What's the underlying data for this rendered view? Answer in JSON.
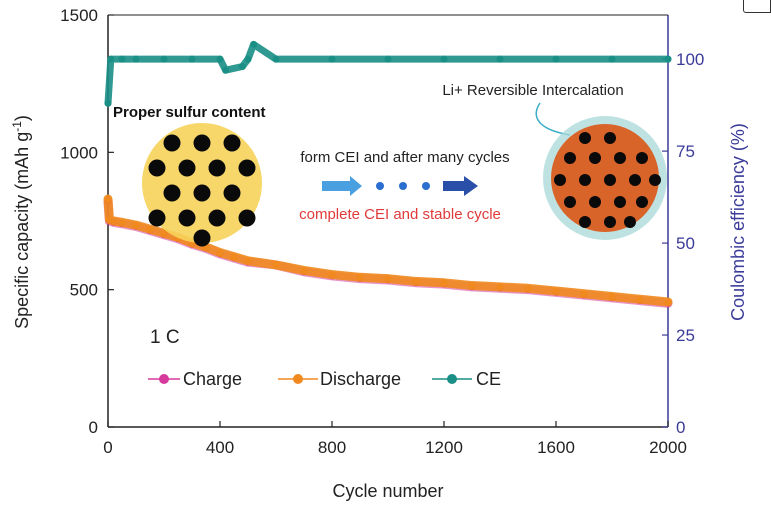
{
  "chart_data": {
    "type": "scatter",
    "x_label": "Cycle number",
    "y_label_left": "Specific capacity (mAh g",
    "y_label_left_sup": "-1",
    "y_label_left_close": ")",
    "y_label_right": "Coulombic efficiency (%)",
    "xlim": [
      0,
      2000
    ],
    "ylim_left": [
      0,
      1500
    ],
    "ylim_right": [
      0,
      112
    ],
    "x_ticks": [
      "0",
      "400",
      "800",
      "1200",
      "1600",
      "2000"
    ],
    "x_tick_values": [
      0,
      400,
      800,
      1200,
      1600,
      2000
    ],
    "y_ticks_left": [
      "0",
      "500",
      "1000",
      "1500"
    ],
    "y_tick_values_left": [
      0,
      500,
      1000,
      1500
    ],
    "y_ticks_right": [
      "0",
      "25",
      "50",
      "75",
      "100"
    ],
    "y_tick_values_right": [
      0,
      25,
      50,
      75,
      100
    ],
    "rate_label": "1 C",
    "legend_position": "bottom-left",
    "series": [
      {
        "name": "Charge",
        "axis": "left",
        "color": "#d63a9c",
        "x": [
          0,
          5,
          20,
          50,
          100,
          150,
          200,
          250,
          300,
          350,
          400,
          450,
          500,
          600,
          700,
          800,
          900,
          1000,
          1100,
          1200,
          1300,
          1400,
          1500,
          1600,
          1700,
          1800,
          1900,
          2000
        ],
        "y": [
          820,
          750,
          745,
          740,
          730,
          715,
          700,
          685,
          665,
          650,
          630,
          615,
          600,
          590,
          565,
          550,
          540,
          535,
          525,
          520,
          510,
          505,
          500,
          490,
          480,
          470,
          460,
          450
        ]
      },
      {
        "name": "Discharge",
        "axis": "left",
        "color": "#f08a1e",
        "x": [
          0,
          5,
          20,
          50,
          100,
          150,
          200,
          250,
          300,
          350,
          400,
          450,
          500,
          600,
          700,
          800,
          900,
          1000,
          1100,
          1200,
          1300,
          1400,
          1500,
          1600,
          1700,
          1800,
          1900,
          2000
        ],
        "y": [
          830,
          755,
          750,
          745,
          735,
          720,
          705,
          690,
          670,
          655,
          635,
          620,
          605,
          590,
          570,
          555,
          545,
          540,
          530,
          525,
          515,
          510,
          505,
          495,
          485,
          475,
          465,
          455
        ]
      },
      {
        "name": "CE",
        "axis": "right",
        "color": "#1a8f86",
        "x": [
          0,
          10,
          50,
          100,
          200,
          300,
          400,
          420,
          480,
          500,
          520,
          600,
          800,
          1000,
          1200,
          1400,
          1600,
          1800,
          2000
        ],
        "y": [
          88,
          100,
          100,
          100,
          100,
          100,
          100,
          97,
          98,
          100,
          104,
          100,
          100,
          100,
          100,
          100,
          100,
          100,
          100
        ]
      }
    ]
  },
  "inset": {
    "left_title": "Proper sulfur content",
    "arrow_text_top": "form CEI and after many cycles",
    "arrow_text_bottom": "complete CEI and stable cycle",
    "right_title": "Li+ Reversible Intercalation",
    "colors": {
      "left_particle": "#f6d35a",
      "right_particle": "#d9642a",
      "right_shell": "#a8d8d8",
      "arrow": "#3b7fd6",
      "bottom_text": "#e03a3a",
      "dot": "#0a0a0a"
    }
  }
}
